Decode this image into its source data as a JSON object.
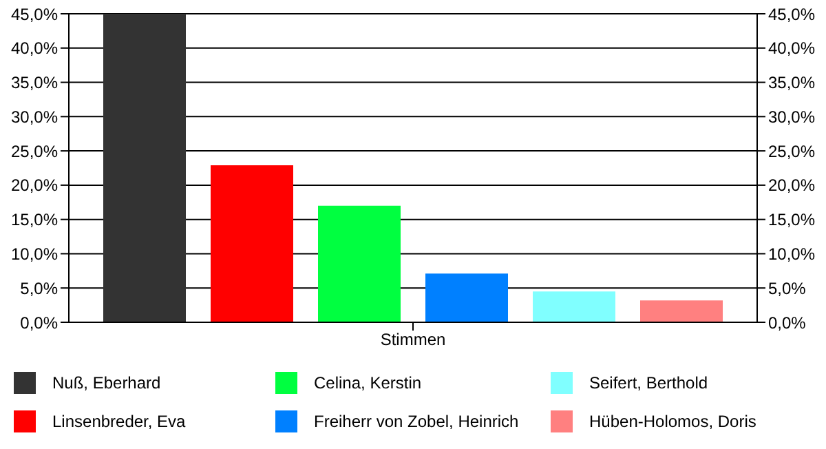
{
  "chart_data": {
    "type": "bar",
    "categories": [
      "Stimmen"
    ],
    "series": [
      {
        "name": "Nuß, Eberhard",
        "color": "#333333",
        "values": [
          45.0
        ]
      },
      {
        "name": "Linsenbreder, Eva",
        "color": "#ff0000",
        "values": [
          22.9
        ]
      },
      {
        "name": "Celina, Kerstin",
        "color": "#00ff40",
        "values": [
          17.0
        ]
      },
      {
        "name": "Freiherr von Zobel, Heinrich",
        "color": "#0080ff",
        "values": [
          7.1
        ]
      },
      {
        "name": "Seifert, Berthold",
        "color": "#80ffff",
        "values": [
          4.5
        ]
      },
      {
        "name": "Hüben-Holomos, Doris",
        "color": "#ff8080",
        "values": [
          3.2
        ]
      }
    ],
    "ylim": [
      0,
      45
    ],
    "yticks": [
      {
        "value": 0,
        "label": "0,0%"
      },
      {
        "value": 5,
        "label": "5,0%"
      },
      {
        "value": 10,
        "label": "10,0%"
      },
      {
        "value": 15,
        "label": "15,0%"
      },
      {
        "value": 20,
        "label": "20,0%"
      },
      {
        "value": 25,
        "label": "25,0%"
      },
      {
        "value": 30,
        "label": "30,0%"
      },
      {
        "value": 35,
        "label": "35,0%"
      },
      {
        "value": 40,
        "label": "40,0%"
      },
      {
        "value": 45,
        "label": "45,0%"
      }
    ],
    "grid": "y",
    "legend": "bottom"
  }
}
